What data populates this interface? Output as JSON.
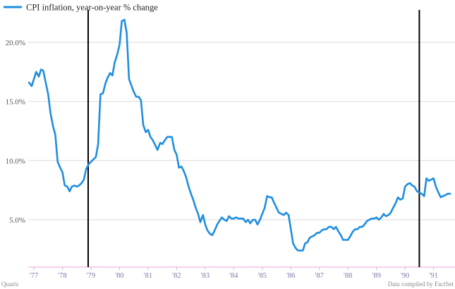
{
  "chart_data": {
    "type": "line",
    "title": "",
    "xlabel": "",
    "ylabel": "",
    "ylim": [
      1.0,
      22.5
    ],
    "xlim": [
      1976.8,
      1991.75
    ],
    "grid": "horizontal",
    "legend_placement": "top-left",
    "y_ticks": [
      {
        "value": 5,
        "label": "5.0%"
      },
      {
        "value": 10,
        "label": "10.0%"
      },
      {
        "value": 15,
        "label": "15.0%"
      },
      {
        "value": 20,
        "label": "20.0%"
      }
    ],
    "x_ticks": [
      {
        "value": 1977,
        "label": "'77"
      },
      {
        "value": 1978,
        "label": "'78"
      },
      {
        "value": 1979,
        "label": "'79"
      },
      {
        "value": 1980,
        "label": "'80"
      },
      {
        "value": 1981,
        "label": "'81"
      },
      {
        "value": 1982,
        "label": "'82"
      },
      {
        "value": 1983,
        "label": "'83"
      },
      {
        "value": 1984,
        "label": "'84"
      },
      {
        "value": 1985,
        "label": "'85"
      },
      {
        "value": 1986,
        "label": "'86"
      },
      {
        "value": 1987,
        "label": "'87"
      },
      {
        "value": 1988,
        "label": "'88"
      },
      {
        "value": 1989,
        "label": "'89"
      },
      {
        "value": 1990,
        "label": "'90"
      },
      {
        "value": 1991,
        "label": "'91"
      }
    ],
    "vertical_markers": [
      1978.9,
      1990.5
    ],
    "series": [
      {
        "name": "CPI inflation, year-on-year % change",
        "color": "#1f8ee0",
        "points": [
          [
            1976.83,
            16.6
          ],
          [
            1976.92,
            16.3
          ],
          [
            1977.0,
            16.9
          ],
          [
            1977.08,
            17.5
          ],
          [
            1977.17,
            17.1
          ],
          [
            1977.25,
            17.7
          ],
          [
            1977.33,
            17.6
          ],
          [
            1977.42,
            16.5
          ],
          [
            1977.5,
            15.6
          ],
          [
            1977.58,
            14.0
          ],
          [
            1977.67,
            12.9
          ],
          [
            1977.75,
            12.2
          ],
          [
            1977.83,
            9.9
          ],
          [
            1977.92,
            9.4
          ],
          [
            1978.0,
            9.0
          ],
          [
            1978.08,
            7.9
          ],
          [
            1978.17,
            7.8
          ],
          [
            1978.25,
            7.4
          ],
          [
            1978.33,
            7.8
          ],
          [
            1978.42,
            7.9
          ],
          [
            1978.5,
            7.8
          ],
          [
            1978.58,
            7.9
          ],
          [
            1978.67,
            8.1
          ],
          [
            1978.75,
            8.4
          ],
          [
            1978.83,
            9.3
          ],
          [
            1978.92,
            9.7
          ],
          [
            1979.0,
            9.9
          ],
          [
            1979.08,
            10.1
          ],
          [
            1979.17,
            10.3
          ],
          [
            1979.25,
            11.4
          ],
          [
            1979.33,
            15.6
          ],
          [
            1979.42,
            15.7
          ],
          [
            1979.5,
            16.5
          ],
          [
            1979.58,
            17.0
          ],
          [
            1979.67,
            17.4
          ],
          [
            1979.75,
            17.2
          ],
          [
            1979.83,
            18.3
          ],
          [
            1979.92,
            19.0
          ],
          [
            1980.0,
            19.8
          ],
          [
            1980.08,
            21.8
          ],
          [
            1980.17,
            21.9
          ],
          [
            1980.25,
            20.8
          ],
          [
            1980.33,
            16.9
          ],
          [
            1980.42,
            16.3
          ],
          [
            1980.5,
            15.8
          ],
          [
            1980.58,
            15.4
          ],
          [
            1980.67,
            15.4
          ],
          [
            1980.75,
            15.1
          ],
          [
            1980.83,
            13.0
          ],
          [
            1980.92,
            12.4
          ],
          [
            1981.0,
            12.6
          ],
          [
            1981.08,
            12.0
          ],
          [
            1981.17,
            11.7
          ],
          [
            1981.25,
            11.3
          ],
          [
            1981.33,
            10.9
          ],
          [
            1981.42,
            11.5
          ],
          [
            1981.5,
            11.4
          ],
          [
            1981.58,
            11.7
          ],
          [
            1981.67,
            12.0
          ],
          [
            1981.75,
            12.0
          ],
          [
            1981.83,
            12.0
          ],
          [
            1981.92,
            10.9
          ],
          [
            1982.0,
            10.5
          ],
          [
            1982.08,
            9.4
          ],
          [
            1982.17,
            9.5
          ],
          [
            1982.25,
            9.1
          ],
          [
            1982.33,
            8.6
          ],
          [
            1982.42,
            7.8
          ],
          [
            1982.5,
            7.2
          ],
          [
            1982.58,
            6.7
          ],
          [
            1982.67,
            6.0
          ],
          [
            1982.75,
            5.5
          ],
          [
            1982.83,
            4.8
          ],
          [
            1982.92,
            5.4
          ],
          [
            1983.0,
            4.6
          ],
          [
            1983.08,
            4.1
          ],
          [
            1983.17,
            3.8
          ],
          [
            1983.25,
            3.7
          ],
          [
            1983.33,
            4.1
          ],
          [
            1983.42,
            4.6
          ],
          [
            1983.5,
            4.9
          ],
          [
            1983.58,
            5.2
          ],
          [
            1983.67,
            5.0
          ],
          [
            1983.75,
            4.9
          ],
          [
            1983.83,
            5.3
          ],
          [
            1983.92,
            5.1
          ],
          [
            1984.0,
            5.1
          ],
          [
            1984.08,
            5.2
          ],
          [
            1984.17,
            5.1
          ],
          [
            1984.25,
            5.1
          ],
          [
            1984.33,
            5.1
          ],
          [
            1984.42,
            4.8
          ],
          [
            1984.5,
            5.0
          ],
          [
            1984.58,
            4.7
          ],
          [
            1984.67,
            5.0
          ],
          [
            1984.75,
            5.0
          ],
          [
            1984.83,
            4.6
          ],
          [
            1984.92,
            5.0
          ],
          [
            1985.0,
            5.5
          ],
          [
            1985.08,
            6.0
          ],
          [
            1985.17,
            7.0
          ],
          [
            1985.25,
            6.9
          ],
          [
            1985.33,
            6.9
          ],
          [
            1985.42,
            6.4
          ],
          [
            1985.5,
            6.0
          ],
          [
            1985.58,
            5.6
          ],
          [
            1985.67,
            5.5
          ],
          [
            1985.75,
            5.4
          ],
          [
            1985.83,
            5.6
          ],
          [
            1985.92,
            5.4
          ],
          [
            1986.0,
            4.2
          ],
          [
            1986.08,
            3.0
          ],
          [
            1986.17,
            2.6
          ],
          [
            1986.25,
            2.4
          ],
          [
            1986.33,
            2.4
          ],
          [
            1986.42,
            2.4
          ],
          [
            1986.5,
            3.0
          ],
          [
            1986.58,
            3.1
          ],
          [
            1986.67,
            3.5
          ],
          [
            1986.75,
            3.6
          ],
          [
            1986.83,
            3.7
          ],
          [
            1986.92,
            3.9
          ],
          [
            1987.0,
            3.9
          ],
          [
            1987.08,
            4.1
          ],
          [
            1987.17,
            4.2
          ],
          [
            1987.25,
            4.2
          ],
          [
            1987.33,
            4.4
          ],
          [
            1987.42,
            4.4
          ],
          [
            1987.5,
            4.2
          ],
          [
            1987.58,
            4.4
          ],
          [
            1987.67,
            4.0
          ],
          [
            1987.75,
            3.7
          ],
          [
            1987.83,
            3.3
          ],
          [
            1987.92,
            3.3
          ],
          [
            1988.0,
            3.3
          ],
          [
            1988.08,
            3.6
          ],
          [
            1988.17,
            4.0
          ],
          [
            1988.25,
            4.2
          ],
          [
            1988.33,
            4.2
          ],
          [
            1988.42,
            4.4
          ],
          [
            1988.5,
            4.4
          ],
          [
            1988.58,
            4.6
          ],
          [
            1988.67,
            4.9
          ],
          [
            1988.75,
            5.0
          ],
          [
            1988.83,
            5.1
          ],
          [
            1988.92,
            5.1
          ],
          [
            1989.0,
            5.2
          ],
          [
            1989.08,
            5.0
          ],
          [
            1989.17,
            5.2
          ],
          [
            1989.25,
            5.5
          ],
          [
            1989.33,
            5.3
          ],
          [
            1989.42,
            5.4
          ],
          [
            1989.5,
            5.6
          ],
          [
            1989.58,
            6.0
          ],
          [
            1989.67,
            6.4
          ],
          [
            1989.75,
            6.9
          ],
          [
            1989.83,
            6.7
          ],
          [
            1989.92,
            6.8
          ],
          [
            1990.0,
            7.8
          ],
          [
            1990.08,
            8.0
          ],
          [
            1990.17,
            8.1
          ],
          [
            1990.25,
            7.9
          ],
          [
            1990.33,
            7.8
          ],
          [
            1990.42,
            7.4
          ],
          [
            1990.5,
            7.3
          ],
          [
            1990.58,
            7.2
          ],
          [
            1990.67,
            7.0
          ],
          [
            1990.75,
            8.5
          ],
          [
            1990.83,
            8.3
          ],
          [
            1990.92,
            8.4
          ],
          [
            1991.0,
            8.5
          ],
          [
            1991.08,
            7.8
          ],
          [
            1991.17,
            7.3
          ],
          [
            1991.25,
            6.9
          ],
          [
            1991.33,
            7.0
          ],
          [
            1991.42,
            7.1
          ],
          [
            1991.5,
            7.2
          ],
          [
            1991.58,
            7.2
          ]
        ]
      }
    ]
  },
  "footer": {
    "source_left": "Quartz",
    "source_right": "Data compiled by FactSet"
  }
}
